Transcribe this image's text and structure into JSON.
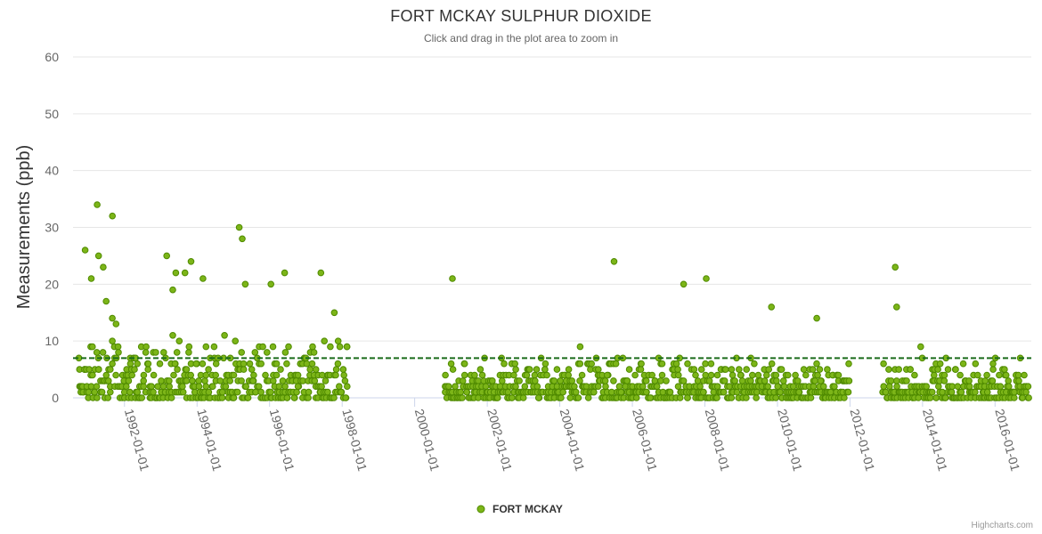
{
  "chart_data": {
    "type": "scatter",
    "title": "FORT MCKAY SULPHUR DIOXIDE",
    "subtitle": "Click and drag in the plot area to zoom in",
    "ylabel": "Measurements (ppb)",
    "xlabel": "",
    "x_axis_type": "date",
    "x_range": [
      "1990-08-01",
      "2016-12-31"
    ],
    "ylim": [
      0,
      60
    ],
    "y_ticks": [
      0,
      10,
      20,
      30,
      40,
      50,
      60
    ],
    "x_ticks": [
      "1992-01-01",
      "1994-01-01",
      "1996-01-01",
      "1998-01-01",
      "2000-01-01",
      "2002-01-01",
      "2004-01-01",
      "2006-01-01",
      "2008-01-01",
      "2010-01-01",
      "2012-01-01",
      "2014-01-01",
      "2016-01-01"
    ],
    "grid": true,
    "legend_position": "bottom-center",
    "marker_color": "#4f8a00",
    "marker_fill": "#7cb518",
    "reference_line": {
      "value": 7,
      "style": "dashed",
      "color": "#1a6b1a"
    },
    "series": [
      {
        "name": "FORT MCKAY",
        "data_ranges": [
          [
            "1990-10-01",
            "1998-03-01"
          ],
          [
            "2000-11-01",
            "2012-01-01"
          ],
          [
            "2012-12-01",
            "2016-12-01"
          ]
        ],
        "notable_points": [
          [
            "1990-12-01",
            26
          ],
          [
            "1991-02-01",
            21
          ],
          [
            "1991-04-01",
            34
          ],
          [
            "1991-04-15",
            25
          ],
          [
            "1991-06-01",
            23
          ],
          [
            "1991-09-01",
            32
          ],
          [
            "1991-07-01",
            17
          ],
          [
            "1993-03-01",
            25
          ],
          [
            "1993-06-01",
            22
          ],
          [
            "1993-09-01",
            22
          ],
          [
            "1993-11-01",
            24
          ],
          [
            "1994-03-01",
            21
          ],
          [
            "1995-03-01",
            30
          ],
          [
            "1995-04-01",
            28
          ],
          [
            "1995-05-01",
            20
          ],
          [
            "1996-01-15",
            20
          ],
          [
            "1996-06-01",
            22
          ],
          [
            "1997-06-01",
            22
          ],
          [
            "2001-01-15",
            21
          ],
          [
            "2005-07-01",
            24
          ],
          [
            "2007-06-01",
            20
          ],
          [
            "2008-01-15",
            21
          ],
          [
            "2009-11-01",
            16
          ],
          [
            "2011-02-01",
            14
          ],
          [
            "2013-04-01",
            23
          ],
          [
            "2013-04-15",
            16
          ]
        ]
      }
    ]
  },
  "credits": "Highcharts.com"
}
